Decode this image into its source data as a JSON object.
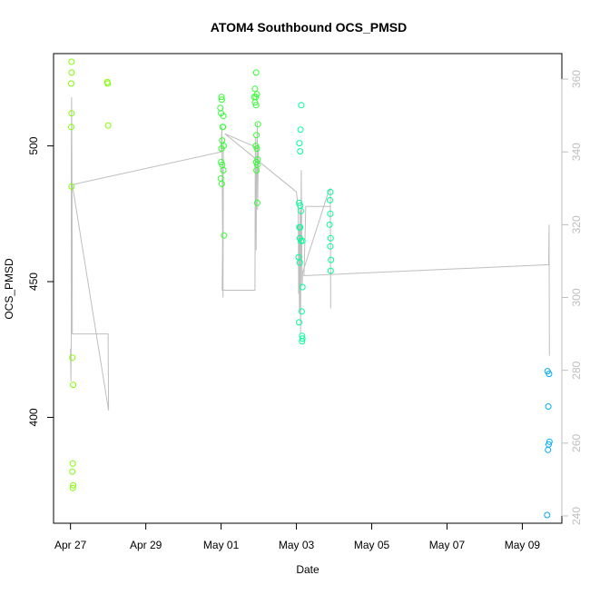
{
  "chart_data": {
    "type": "scatter",
    "title": "ATOM4 Southbound OCS_PMSD",
    "xlabel": "Date",
    "ylabel": "OCS_PMSD",
    "x_ticks": [
      "Apr 27",
      "Apr 29",
      "May 01",
      "May 03",
      "May 05",
      "May 07",
      "May 09"
    ],
    "x_tick_days": [
      0,
      2,
      4,
      6,
      8,
      10,
      12
    ],
    "xlim_days": [
      -0.45,
      13.05
    ],
    "y_ticks": [
      400,
      450,
      500
    ],
    "ylim": [
      361,
      534
    ],
    "y2_ticks": [
      240,
      260,
      280,
      300,
      320,
      340,
      360
    ],
    "y2lim": [
      238,
      367
    ],
    "colors": {
      "axis": "#000000",
      "secondary_axis": "#bebebe",
      "line": "#bebebe"
    },
    "series": [
      {
        "color": "#7fff00",
        "points": [
          {
            "x": 0.03,
            "y": 531
          },
          {
            "x": 0.03,
            "y": 527
          },
          {
            "x": 0.02,
            "y": 523
          },
          {
            "x": 0.03,
            "y": 512
          },
          {
            "x": 0.02,
            "y": 507
          },
          {
            "x": 0.03,
            "y": 485
          },
          {
            "x": 0.05,
            "y": 422
          },
          {
            "x": 0.07,
            "y": 412
          },
          {
            "x": 0.06,
            "y": 383
          },
          {
            "x": 0.05,
            "y": 380
          },
          {
            "x": 0.07,
            "y": 375
          },
          {
            "x": 0.06,
            "y": 374
          },
          {
            "x": 0.98,
            "y": 523.5
          },
          {
            "x": 0.99,
            "y": 523
          },
          {
            "x": 1.0,
            "y": 507.5
          }
        ]
      },
      {
        "color": "#32ff32",
        "points": [
          {
            "x": 4.01,
            "y": 518
          },
          {
            "x": 4.02,
            "y": 517
          },
          {
            "x": 3.98,
            "y": 514
          },
          {
            "x": 4.0,
            "y": 512
          },
          {
            "x": 4.06,
            "y": 511
          },
          {
            "x": 4.04,
            "y": 507
          },
          {
            "x": 4.05,
            "y": 507
          },
          {
            "x": 4.03,
            "y": 502
          },
          {
            "x": 4.07,
            "y": 500
          },
          {
            "x": 4.01,
            "y": 499
          },
          {
            "x": 4.0,
            "y": 494
          },
          {
            "x": 4.03,
            "y": 493
          },
          {
            "x": 4.06,
            "y": 491
          },
          {
            "x": 3.99,
            "y": 488
          },
          {
            "x": 4.02,
            "y": 486
          },
          {
            "x": 4.08,
            "y": 467
          },
          {
            "x": 4.93,
            "y": 527
          },
          {
            "x": 4.9,
            "y": 521
          },
          {
            "x": 4.95,
            "y": 519
          },
          {
            "x": 4.88,
            "y": 518
          },
          {
            "x": 4.92,
            "y": 518
          },
          {
            "x": 4.9,
            "y": 516
          },
          {
            "x": 4.93,
            "y": 515
          },
          {
            "x": 4.98,
            "y": 508
          },
          {
            "x": 4.94,
            "y": 504
          },
          {
            "x": 4.92,
            "y": 500
          },
          {
            "x": 4.95,
            "y": 499
          },
          {
            "x": 4.97,
            "y": 495
          },
          {
            "x": 4.93,
            "y": 494
          },
          {
            "x": 4.96,
            "y": 493
          },
          {
            "x": 4.94,
            "y": 491
          },
          {
            "x": 4.96,
            "y": 479
          }
        ]
      },
      {
        "color": "#00ff99",
        "points": [
          {
            "x": 6.13,
            "y": 515
          },
          {
            "x": 6.11,
            "y": 506
          },
          {
            "x": 6.08,
            "y": 501
          },
          {
            "x": 6.1,
            "y": 498
          },
          {
            "x": 6.07,
            "y": 479
          },
          {
            "x": 6.1,
            "y": 478
          },
          {
            "x": 6.12,
            "y": 476
          },
          {
            "x": 6.08,
            "y": 470
          },
          {
            "x": 6.1,
            "y": 470
          },
          {
            "x": 6.09,
            "y": 466
          },
          {
            "x": 6.16,
            "y": 465
          },
          {
            "x": 6.12,
            "y": 465
          },
          {
            "x": 6.06,
            "y": 459
          },
          {
            "x": 6.09,
            "y": 457
          },
          {
            "x": 6.16,
            "y": 448
          },
          {
            "x": 6.14,
            "y": 439
          },
          {
            "x": 6.07,
            "y": 435
          },
          {
            "x": 6.15,
            "y": 430
          },
          {
            "x": 6.16,
            "y": 429
          },
          {
            "x": 6.15,
            "y": 428
          },
          {
            "x": 6.9,
            "y": 483
          },
          {
            "x": 6.89,
            "y": 480
          },
          {
            "x": 6.9,
            "y": 475
          },
          {
            "x": 6.88,
            "y": 471
          },
          {
            "x": 6.91,
            "y": 466
          },
          {
            "x": 6.9,
            "y": 463
          },
          {
            "x": 6.92,
            "y": 458
          },
          {
            "x": 6.91,
            "y": 454
          }
        ]
      },
      {
        "color": "#00aaff",
        "points": [
          {
            "x": 12.67,
            "y": 417
          },
          {
            "x": 12.71,
            "y": 416
          },
          {
            "x": 12.69,
            "y": 404
          },
          {
            "x": 12.72,
            "y": 391
          },
          {
            "x": 12.7,
            "y": 390
          },
          {
            "x": 12.68,
            "y": 388
          },
          {
            "x": 12.66,
            "y": 364
          }
        ]
      }
    ],
    "line": {
      "color": "#bebebe",
      "axis": "right",
      "points": [
        {
          "x": 0.0,
          "y": 286
        },
        {
          "x": 0.01,
          "y": 277
        },
        {
          "x": 0.02,
          "y": 289
        },
        {
          "x": 0.02,
          "y": 336
        },
        {
          "x": 0.03,
          "y": 355
        },
        {
          "x": 0.04,
          "y": 331
        },
        {
          "x": 0.05,
          "y": 290
        },
        {
          "x": 1.0,
          "y": 290
        },
        {
          "x": 1.01,
          "y": 269
        },
        {
          "x": 0.05,
          "y": 331
        },
        {
          "x": 4.0,
          "y": 340
        },
        {
          "x": 4.02,
          "y": 347
        },
        {
          "x": 4.05,
          "y": 300
        },
        {
          "x": 4.06,
          "y": 343
        },
        {
          "x": 4.03,
          "y": 302
        },
        {
          "x": 4.9,
          "y": 302
        },
        {
          "x": 4.91,
          "y": 344
        },
        {
          "x": 4.93,
          "y": 313
        },
        {
          "x": 4.94,
          "y": 333
        },
        {
          "x": 4.96,
          "y": 348
        },
        {
          "x": 4.97,
          "y": 324
        },
        {
          "x": 4.99,
          "y": 341
        },
        {
          "x": 4.1,
          "y": 345
        },
        {
          "x": 6.0,
          "y": 329
        },
        {
          "x": 6.05,
          "y": 324
        },
        {
          "x": 6.06,
          "y": 301
        },
        {
          "x": 6.07,
          "y": 320
        },
        {
          "x": 6.08,
          "y": 296
        },
        {
          "x": 6.1,
          "y": 324
        },
        {
          "x": 6.11,
          "y": 290
        },
        {
          "x": 6.12,
          "y": 311
        },
        {
          "x": 6.13,
          "y": 335
        },
        {
          "x": 6.15,
          "y": 303
        },
        {
          "x": 6.17,
          "y": 307
        },
        {
          "x": 6.85,
          "y": 329
        },
        {
          "x": 6.9,
          "y": 330
        },
        {
          "x": 6.91,
          "y": 297
        },
        {
          "x": 6.9,
          "y": 325
        },
        {
          "x": 6.25,
          "y": 325
        },
        {
          "x": 6.2,
          "y": 306
        },
        {
          "x": 12.7,
          "y": 309
        },
        {
          "x": 12.71,
          "y": 320
        },
        {
          "x": 12.72,
          "y": 284
        }
      ]
    },
    "grid": false,
    "legend": "none"
  }
}
